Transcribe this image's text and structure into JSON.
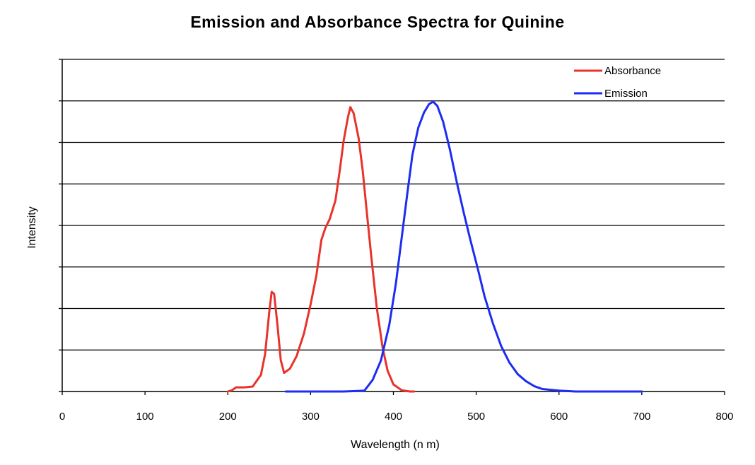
{
  "chart_data": {
    "type": "line",
    "title": "Emission and Absorbance Spectra for Quinine",
    "xlabel": "Wavelength (n m)",
    "ylabel": "Intensity",
    "xlim": [
      0,
      800
    ],
    "ylim": [
      0,
      8
    ],
    "x_ticks": [
      0,
      100,
      200,
      300,
      400,
      500,
      600,
      700,
      800
    ],
    "y_gridlines": [
      1,
      2,
      3,
      4,
      5,
      6,
      7,
      8
    ],
    "y_tick_labels_shown": false,
    "grid": "horizontal",
    "legend_position": "top-right",
    "series": [
      {
        "name": "Absorbance",
        "color": "#e8322a",
        "points": [
          [
            200,
            0
          ],
          [
            205,
            0.03
          ],
          [
            210,
            0.1
          ],
          [
            220,
            0.1
          ],
          [
            230,
            0.12
          ],
          [
            240,
            0.4
          ],
          [
            245,
            0.9
          ],
          [
            250,
            1.9
          ],
          [
            253,
            2.4
          ],
          [
            256,
            2.35
          ],
          [
            260,
            1.6
          ],
          [
            264,
            0.75
          ],
          [
            268,
            0.45
          ],
          [
            275,
            0.55
          ],
          [
            283,
            0.85
          ],
          [
            292,
            1.4
          ],
          [
            300,
            2.1
          ],
          [
            307,
            2.8
          ],
          [
            313,
            3.65
          ],
          [
            318,
            3.95
          ],
          [
            323,
            4.15
          ],
          [
            330,
            4.6
          ],
          [
            335,
            5.3
          ],
          [
            340,
            6.05
          ],
          [
            345,
            6.6
          ],
          [
            348,
            6.85
          ],
          [
            352,
            6.7
          ],
          [
            358,
            6.1
          ],
          [
            363,
            5.3
          ],
          [
            368,
            4.3
          ],
          [
            373,
            3.3
          ],
          [
            380,
            2.0
          ],
          [
            387,
            1.05
          ],
          [
            393,
            0.5
          ],
          [
            400,
            0.17
          ],
          [
            410,
            0.03
          ],
          [
            420,
            0
          ],
          [
            425,
            0
          ]
        ]
      },
      {
        "name": "Emission",
        "color": "#1d2cf2",
        "points": [
          [
            270,
            0
          ],
          [
            300,
            0
          ],
          [
            340,
            0
          ],
          [
            365,
            0.02
          ],
          [
            375,
            0.28
          ],
          [
            385,
            0.75
          ],
          [
            395,
            1.6
          ],
          [
            403,
            2.6
          ],
          [
            410,
            3.7
          ],
          [
            417,
            4.8
          ],
          [
            423,
            5.7
          ],
          [
            430,
            6.35
          ],
          [
            437,
            6.72
          ],
          [
            443,
            6.92
          ],
          [
            448,
            6.98
          ],
          [
            453,
            6.88
          ],
          [
            460,
            6.5
          ],
          [
            468,
            5.85
          ],
          [
            477,
            5.0
          ],
          [
            485,
            4.3
          ],
          [
            493,
            3.65
          ],
          [
            502,
            2.95
          ],
          [
            510,
            2.3
          ],
          [
            520,
            1.65
          ],
          [
            530,
            1.1
          ],
          [
            540,
            0.7
          ],
          [
            550,
            0.42
          ],
          [
            560,
            0.25
          ],
          [
            570,
            0.13
          ],
          [
            580,
            0.06
          ],
          [
            600,
            0.02
          ],
          [
            620,
            0
          ],
          [
            700,
            0
          ]
        ]
      }
    ]
  }
}
